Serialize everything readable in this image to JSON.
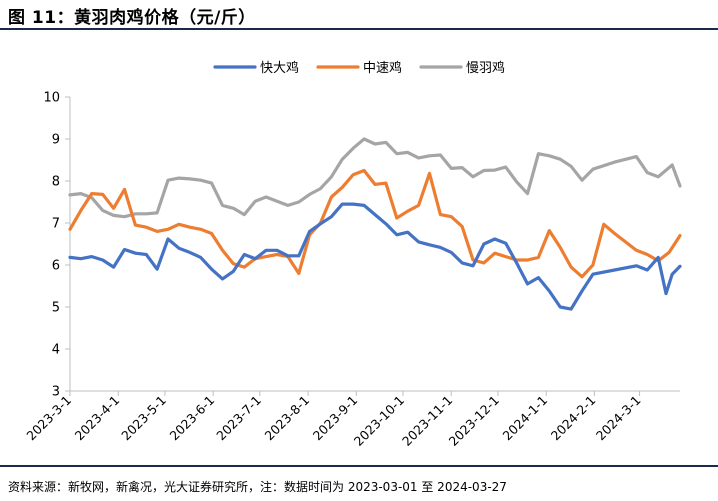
{
  "figure": {
    "title": "图 11：黄羽肉鸡价格（元/斤）",
    "source": "资料来源：新牧网，新禽况，光大证券研究所，注：数据时间为 2023-03-01 至 2024-03-27"
  },
  "chart_data": {
    "type": "line",
    "title": "黄羽肉鸡价格（元/斤）",
    "xlabel": "",
    "ylabel": "",
    "ylim": [
      3,
      10
    ],
    "yticks": [
      3,
      4,
      5,
      6,
      7,
      8,
      9,
      10
    ],
    "grid": false,
    "legend_position": "top-center",
    "x_ticks": [
      "2023-3-1",
      "2023-4-1",
      "2023-5-1",
      "2023-6-1",
      "2023-7-1",
      "2023-8-1",
      "2023-9-1",
      "2023-10-1",
      "2023-11-1",
      "2023-12-1",
      "2024-1-1",
      "2024-2-1",
      "2024-3-1"
    ],
    "x_start": "2023-03-01",
    "x_end": "2024-03-27",
    "series": [
      {
        "name": "快大鸡",
        "color": "#4472c4",
        "points": [
          [
            "2023-03-01",
            6.18
          ],
          [
            "2023-03-08",
            6.15
          ],
          [
            "2023-03-15",
            6.2
          ],
          [
            "2023-03-22",
            6.12
          ],
          [
            "2023-03-29",
            5.95
          ],
          [
            "2023-04-05",
            6.37
          ],
          [
            "2023-04-12",
            6.28
          ],
          [
            "2023-04-19",
            6.25
          ],
          [
            "2023-04-26",
            5.9
          ],
          [
            "2023-05-03",
            6.62
          ],
          [
            "2023-05-10",
            6.4
          ],
          [
            "2023-05-17",
            6.3
          ],
          [
            "2023-05-24",
            6.18
          ],
          [
            "2023-05-31",
            5.9
          ],
          [
            "2023-06-07",
            5.67
          ],
          [
            "2023-06-14",
            5.85
          ],
          [
            "2023-06-21",
            6.25
          ],
          [
            "2023-06-28",
            6.15
          ],
          [
            "2023-07-05",
            6.35
          ],
          [
            "2023-07-12",
            6.35
          ],
          [
            "2023-07-19",
            6.22
          ],
          [
            "2023-07-26",
            6.22
          ],
          [
            "2023-08-02",
            6.8
          ],
          [
            "2023-08-09",
            6.98
          ],
          [
            "2023-08-16",
            7.15
          ],
          [
            "2023-08-23",
            7.45
          ],
          [
            "2023-08-30",
            7.45
          ],
          [
            "2023-09-06",
            7.42
          ],
          [
            "2023-09-13",
            7.2
          ],
          [
            "2023-09-20",
            6.98
          ],
          [
            "2023-09-27",
            6.72
          ],
          [
            "2023-10-04",
            6.78
          ],
          [
            "2023-10-11",
            6.55
          ],
          [
            "2023-10-18",
            6.48
          ],
          [
            "2023-10-25",
            6.42
          ],
          [
            "2023-11-01",
            6.3
          ],
          [
            "2023-11-08",
            6.05
          ],
          [
            "2023-11-15",
            5.98
          ],
          [
            "2023-11-22",
            6.5
          ],
          [
            "2023-11-29",
            6.62
          ],
          [
            "2023-12-06",
            6.52
          ],
          [
            "2023-12-13",
            6.05
          ],
          [
            "2023-12-20",
            5.55
          ],
          [
            "2023-12-27",
            5.7
          ],
          [
            "2024-01-03",
            5.38
          ],
          [
            "2024-01-10",
            5.0
          ],
          [
            "2024-01-17",
            4.95
          ],
          [
            "2024-01-24",
            5.38
          ],
          [
            "2024-01-31",
            5.78
          ],
          [
            "2024-02-14",
            5.88
          ],
          [
            "2024-02-28",
            5.98
          ],
          [
            "2024-03-06",
            5.88
          ],
          [
            "2024-03-13",
            6.18
          ],
          [
            "2024-03-18",
            5.32
          ],
          [
            "2024-03-22",
            5.78
          ],
          [
            "2024-03-27",
            5.97
          ]
        ]
      },
      {
        "name": "中速鸡",
        "color": "#ed7d31",
        "points": [
          [
            "2023-03-01",
            6.85
          ],
          [
            "2023-03-08",
            7.3
          ],
          [
            "2023-03-15",
            7.7
          ],
          [
            "2023-03-22",
            7.68
          ],
          [
            "2023-03-29",
            7.35
          ],
          [
            "2023-04-05",
            7.8
          ],
          [
            "2023-04-12",
            6.95
          ],
          [
            "2023-04-19",
            6.9
          ],
          [
            "2023-04-26",
            6.8
          ],
          [
            "2023-05-03",
            6.85
          ],
          [
            "2023-05-10",
            6.97
          ],
          [
            "2023-05-17",
            6.9
          ],
          [
            "2023-05-24",
            6.85
          ],
          [
            "2023-05-31",
            6.75
          ],
          [
            "2023-06-07",
            6.35
          ],
          [
            "2023-06-14",
            6.03
          ],
          [
            "2023-06-21",
            5.95
          ],
          [
            "2023-06-28",
            6.15
          ],
          [
            "2023-07-05",
            6.2
          ],
          [
            "2023-07-12",
            6.25
          ],
          [
            "2023-07-19",
            6.2
          ],
          [
            "2023-07-26",
            5.8
          ],
          [
            "2023-08-02",
            6.72
          ],
          [
            "2023-08-09",
            7.0
          ],
          [
            "2023-08-16",
            7.62
          ],
          [
            "2023-08-23",
            7.85
          ],
          [
            "2023-08-30",
            8.15
          ],
          [
            "2023-09-06",
            8.25
          ],
          [
            "2023-09-13",
            7.92
          ],
          [
            "2023-09-20",
            7.95
          ],
          [
            "2023-09-27",
            7.12
          ],
          [
            "2023-10-04",
            7.28
          ],
          [
            "2023-10-11",
            7.42
          ],
          [
            "2023-10-18",
            8.18
          ],
          [
            "2023-10-25",
            7.2
          ],
          [
            "2023-11-01",
            7.15
          ],
          [
            "2023-11-08",
            6.92
          ],
          [
            "2023-11-15",
            6.12
          ],
          [
            "2023-11-22",
            6.05
          ],
          [
            "2023-11-29",
            6.28
          ],
          [
            "2023-12-06",
            6.2
          ],
          [
            "2023-12-13",
            6.12
          ],
          [
            "2023-12-20",
            6.12
          ],
          [
            "2023-12-27",
            6.18
          ],
          [
            "2024-01-03",
            6.82
          ],
          [
            "2024-01-10",
            6.42
          ],
          [
            "2024-01-17",
            5.95
          ],
          [
            "2024-01-24",
            5.72
          ],
          [
            "2024-01-31",
            6.0
          ],
          [
            "2024-02-07",
            6.97
          ],
          [
            "2024-02-14",
            6.75
          ],
          [
            "2024-02-21",
            6.55
          ],
          [
            "2024-02-28",
            6.35
          ],
          [
            "2024-03-06",
            6.25
          ],
          [
            "2024-03-13",
            6.1
          ],
          [
            "2024-03-20",
            6.3
          ],
          [
            "2024-03-27",
            6.7
          ]
        ]
      },
      {
        "name": "慢羽鸡",
        "color": "#a5a5a5",
        "points": [
          [
            "2023-03-01",
            7.67
          ],
          [
            "2023-03-08",
            7.7
          ],
          [
            "2023-03-15",
            7.6
          ],
          [
            "2023-03-22",
            7.3
          ],
          [
            "2023-03-29",
            7.18
          ],
          [
            "2023-04-05",
            7.15
          ],
          [
            "2023-04-12",
            7.22
          ],
          [
            "2023-04-19",
            7.22
          ],
          [
            "2023-04-26",
            7.24
          ],
          [
            "2023-05-03",
            8.02
          ],
          [
            "2023-05-10",
            8.07
          ],
          [
            "2023-05-17",
            8.05
          ],
          [
            "2023-05-24",
            8.02
          ],
          [
            "2023-05-31",
            7.95
          ],
          [
            "2023-06-07",
            7.42
          ],
          [
            "2023-06-14",
            7.35
          ],
          [
            "2023-06-21",
            7.2
          ],
          [
            "2023-06-28",
            7.52
          ],
          [
            "2023-07-05",
            7.62
          ],
          [
            "2023-07-12",
            7.52
          ],
          [
            "2023-07-19",
            7.42
          ],
          [
            "2023-07-26",
            7.5
          ],
          [
            "2023-08-02",
            7.68
          ],
          [
            "2023-08-09",
            7.82
          ],
          [
            "2023-08-16",
            8.1
          ],
          [
            "2023-08-23",
            8.52
          ],
          [
            "2023-08-30",
            8.78
          ],
          [
            "2023-09-06",
            9.0
          ],
          [
            "2023-09-13",
            8.88
          ],
          [
            "2023-09-20",
            8.92
          ],
          [
            "2023-09-27",
            8.65
          ],
          [
            "2023-10-04",
            8.68
          ],
          [
            "2023-10-11",
            8.55
          ],
          [
            "2023-10-18",
            8.6
          ],
          [
            "2023-10-25",
            8.62
          ],
          [
            "2023-11-01",
            8.3
          ],
          [
            "2023-11-08",
            8.32
          ],
          [
            "2023-11-15",
            8.1
          ],
          [
            "2023-11-22",
            8.25
          ],
          [
            "2023-11-29",
            8.26
          ],
          [
            "2023-12-06",
            8.33
          ],
          [
            "2023-12-13",
            7.98
          ],
          [
            "2023-12-20",
            7.7
          ],
          [
            "2023-12-27",
            8.65
          ],
          [
            "2024-01-03",
            8.6
          ],
          [
            "2024-01-10",
            8.52
          ],
          [
            "2024-01-17",
            8.35
          ],
          [
            "2024-01-24",
            8.02
          ],
          [
            "2024-01-31",
            8.28
          ],
          [
            "2024-02-14",
            8.45
          ],
          [
            "2024-02-28",
            8.58
          ],
          [
            "2024-03-06",
            8.2
          ],
          [
            "2024-03-13",
            8.1
          ],
          [
            "2024-03-22",
            8.38
          ],
          [
            "2024-03-27",
            7.88
          ]
        ]
      }
    ]
  }
}
